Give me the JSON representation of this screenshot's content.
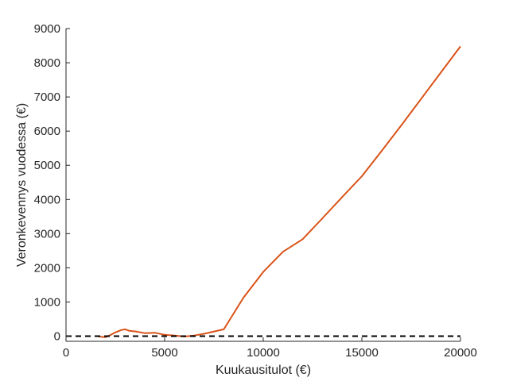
{
  "chart_data": {
    "type": "line",
    "title": "",
    "xlabel": "Kuukausitulot (€)",
    "ylabel": "Veronkevennys vuodessa (€)",
    "xlim": [
      0,
      20000
    ],
    "ylim": [
      -150,
      9000
    ],
    "x_ticks": [
      0,
      5000,
      10000,
      15000,
      20000
    ],
    "y_ticks": [
      0,
      1000,
      2000,
      3000,
      4000,
      5000,
      6000,
      7000,
      8000,
      9000
    ],
    "grid": false,
    "legend": "none",
    "series": [
      {
        "color": "#d95319",
        "style": "solid",
        "x": [
          1600,
          1800,
          2000,
          2200,
          2500,
          2800,
          3000,
          3200,
          3500,
          3800,
          4000,
          4500,
          5000,
          5500,
          6000,
          6500,
          7000,
          8000,
          9000,
          10000,
          11000,
          12000,
          13000,
          14000,
          15000,
          16000,
          17000,
          18000,
          19000,
          20000
        ],
        "y": [
          0,
          -20,
          -30,
          20,
          110,
          180,
          200,
          160,
          140,
          110,
          90,
          100,
          40,
          20,
          -10,
          20,
          70,
          200,
          1130,
          1880,
          2470,
          2840,
          3450,
          4070,
          4680,
          5420,
          6170,
          6940,
          7710,
          8480
        ]
      },
      {
        "color": "#000000",
        "style": "dashed",
        "x": [
          0,
          20000
        ],
        "y": [
          0,
          0
        ]
      }
    ]
  }
}
